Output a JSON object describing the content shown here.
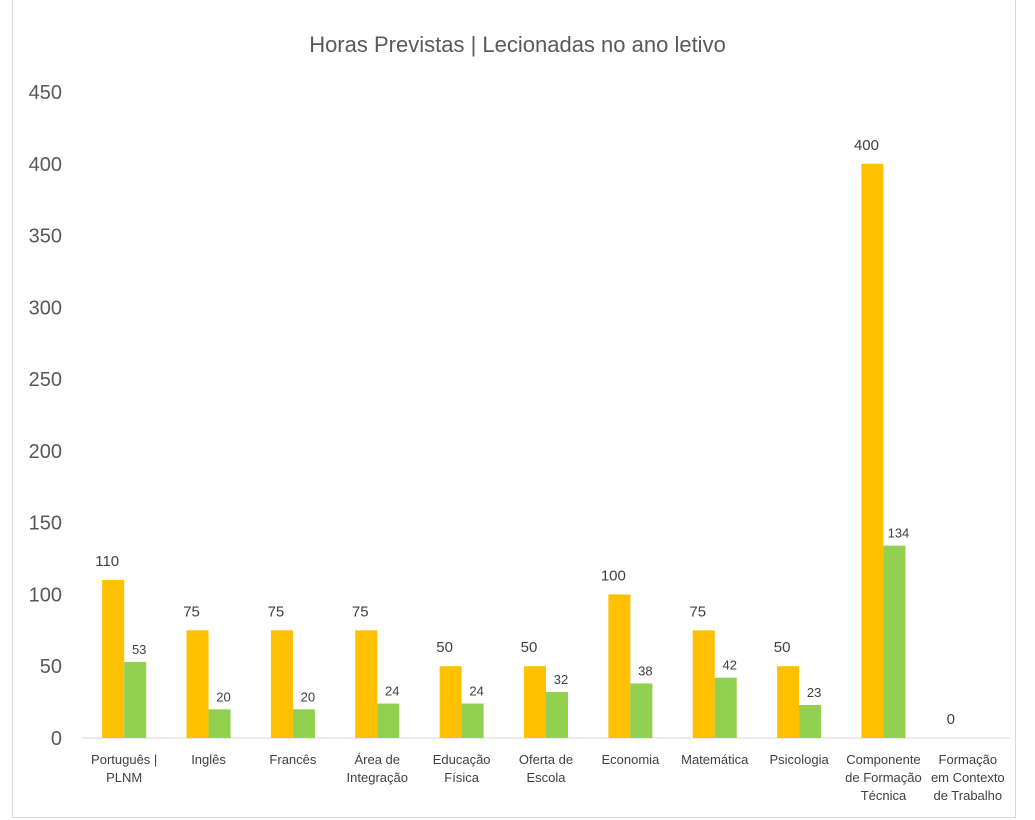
{
  "chart_data": {
    "type": "bar",
    "title": "Horas Previstas | Lecionadas no ano letivo",
    "categories": [
      [
        "Português |",
        "PLNM"
      ],
      [
        "Inglês"
      ],
      [
        "Francês"
      ],
      [
        "Área de",
        "Integração"
      ],
      [
        "Educação",
        "Física"
      ],
      [
        "Oferta de",
        "Escola"
      ],
      [
        "Economia"
      ],
      [
        "Matemática"
      ],
      [
        "Psicologia"
      ],
      [
        "Componente",
        "de Formação",
        "Técnica"
      ],
      [
        "Formação",
        "em Contexto",
        "de Trabalho"
      ]
    ],
    "series": [
      {
        "values": [
          110,
          75,
          75,
          75,
          50,
          50,
          100,
          75,
          50,
          400,
          0
        ],
        "color": "#FFC000"
      },
      {
        "values": [
          53,
          20,
          20,
          24,
          24,
          32,
          38,
          42,
          23,
          134,
          null
        ],
        "color": "#92D050"
      }
    ],
    "ylim": [
      0,
      450
    ],
    "yticks": [
      0,
      50,
      100,
      150,
      200,
      250,
      300,
      350,
      400,
      450
    ],
    "grid": false,
    "legend": "none"
  }
}
